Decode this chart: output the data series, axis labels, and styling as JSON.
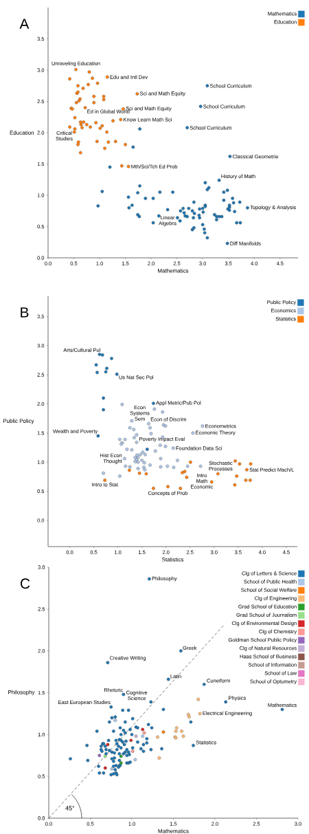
{
  "chart_data": [
    {
      "type": "scatter",
      "title": "A",
      "xlabel": "Mathematics",
      "ylabel": "Education",
      "legend": "top right",
      "marker": "circle",
      "xlim": [
        0,
        4.85
      ],
      "ylim": [
        0,
        4.0
      ],
      "xticks": [
        {
          "value": 0,
          "label": "0.0"
        },
        {
          "value": 0.5,
          "label": "0.5"
        },
        {
          "value": 1,
          "label": "1.0"
        },
        {
          "value": 1.5,
          "label": "1.5"
        },
        {
          "value": 2,
          "label": "2.0"
        },
        {
          "value": 2.5,
          "label": "2.5"
        },
        {
          "value": 3,
          "label": "3.0"
        },
        {
          "value": 3.5,
          "label": "3.5"
        },
        {
          "value": 4,
          "label": "4.0"
        },
        {
          "value": 4.5,
          "label": "4.5"
        }
      ],
      "yticks": [
        {
          "value": 0,
          "label": "0.0"
        },
        {
          "value": 0.5,
          "label": "0.5"
        },
        {
          "value": 1,
          "label": "1.0"
        },
        {
          "value": 1.5,
          "label": "1.5"
        },
        {
          "value": 2,
          "label": "2.0"
        },
        {
          "value": 2.5,
          "label": "2.5"
        },
        {
          "value": 3,
          "label": "3.0"
        },
        {
          "value": 3.5,
          "label": "3.5"
        }
      ],
      "series": [
        {
          "name": "Mathematics",
          "color": "#1f77b4",
          "x": [
            1.78,
            3.09,
            2.96,
            2.7,
            1.65,
            1.2,
            3.53,
            3.32,
            3.05,
            3.09,
            3.12,
            1.78,
            1.74,
            1.05,
            0.97,
            2.17,
            2.42,
            1.56,
            1.89,
            2.04,
            1.63,
            1.57,
            1.74,
            1.77,
            2.15,
            2.04,
            2.32,
            2.51,
            2.56,
            3.41,
            3.48,
            3.41,
            3.58,
            3.6,
            3.72,
            3.87,
            3.62,
            3.66,
            3.73,
            3.48,
            2.62,
            2.73,
            2.83,
            2.57,
            2.64,
            2.66,
            2.7,
            2.8,
            2.84,
            2.82,
            2.8,
            2.83,
            2.94,
            3.0,
            2.93,
            2.94,
            3.01,
            3.05,
            3.05,
            3.0,
            3.03,
            3.04,
            3.09,
            3.23,
            3.27,
            3.27,
            3.32,
            3.37,
            3.49,
            3.52,
            3.52,
            3.52
          ],
          "values": [
            2.06,
            2.75,
            2.42,
            2.08,
            1.77,
            1.45,
            1.62,
            1.24,
            1.2,
            1.09,
            1.12,
            1.15,
            1.04,
            1.06,
            0.83,
            1.05,
            1.05,
            0.97,
            0.95,
            0.95,
            0.84,
            0.8,
            0.69,
            0.66,
            0.67,
            0.56,
            0.77,
            0.64,
            0.59,
            1.05,
            1.08,
            0.92,
            0.95,
            0.88,
            0.89,
            0.8,
            0.74,
            0.56,
            0.56,
            0.23,
            0.79,
            0.79,
            0.89,
            0.75,
            0.72,
            0.67,
            0.66,
            0.75,
            0.71,
            0.64,
            0.45,
            0.48,
            0.78,
            0.79,
            0.68,
            0.64,
            0.73,
            0.84,
            0.82,
            0.53,
            0.46,
            0.4,
            0.32,
            0.69,
            0.66,
            0.61,
            0.66,
            0.66,
            0.78,
            0.81,
            0.76,
            0.84
          ]
        },
        {
          "name": "Education",
          "color": "#ff7f0e",
          "x": [
            0.54,
            0.42,
            0.8,
            0.86,
            0.96,
            0.78,
            0.68,
            0.58,
            1.15,
            0.56,
            0.58,
            0.62,
            0.6,
            0.55,
            0.89,
            0.89,
            1.08,
            1.08,
            0.45,
            0.47,
            0.72,
            0.52,
            1.73,
            1.46,
            1.41,
            1.26,
            0.63,
            0.69,
            0.64,
            0.75,
            0.82,
            0.93,
            1.05,
            1.01,
            0.66,
            0.42,
            0.52,
            0.51,
            1.14,
            0.59,
            0.58,
            0.63,
            0.95,
            1.17,
            1.31,
            1.1,
            1.5,
            1.43,
            1.56
          ],
          "values": [
            3.01,
            2.86,
            2.97,
            2.87,
            2.79,
            2.77,
            2.71,
            2.75,
            2.89,
            2.63,
            2.65,
            2.54,
            2.51,
            2.48,
            2.58,
            2.48,
            2.58,
            2.53,
            2.39,
            2.38,
            2.4,
            2.24,
            2.62,
            2.38,
            2.21,
            2.19,
            2.17,
            2.17,
            2.13,
            2.13,
            2.09,
            2.16,
            2.11,
            2.07,
            2.08,
            2.09,
            2.06,
            2.01,
            2.01,
            1.85,
            1.81,
            1.68,
            1.86,
            1.85,
            1.86,
            1.75,
            1.81,
            1.47,
            1.46
          ]
        }
      ],
      "annotations": [
        {
          "text": "Unraveling Education",
          "x": 0.54,
          "y": 3.01
        },
        {
          "text": "Edu and Intl Dev",
          "x": 1.15,
          "y": 2.89
        },
        {
          "text": "Sci and Math Equity",
          "x": 1.73,
          "y": 2.62
        },
        {
          "text": "Sci and Math Equity",
          "x": 1.46,
          "y": 2.38
        },
        {
          "text": "Ed in Global World",
          "x": 0.72,
          "y": 2.4
        },
        {
          "text": "Know Learn Math Sci",
          "x": 1.41,
          "y": 2.21
        },
        {
          "text": "Critical Studies",
          "x": 0.42,
          "y": 2.09
        },
        {
          "text": "Mth/Sci/Tch Ed Prob",
          "x": 1.56,
          "y": 1.46
        },
        {
          "text": "School Curriculum",
          "x": 3.09,
          "y": 2.75
        },
        {
          "text": "School Curriculum",
          "x": 2.96,
          "y": 2.42
        },
        {
          "text": "School Curriculum",
          "x": 2.7,
          "y": 2.08
        },
        {
          "text": "Classical Geometrie",
          "x": 3.53,
          "y": 1.62
        },
        {
          "text": "History of Math",
          "x": 3.32,
          "y": 1.24
        },
        {
          "text": "Topology & Analysis",
          "x": 3.87,
          "y": 0.8
        },
        {
          "text": "Linear Algebra",
          "x": 2.32,
          "y": 0.77
        },
        {
          "text": "Diff Manifolds",
          "x": 3.48,
          "y": 0.23
        }
      ]
    },
    {
      "type": "scatter",
      "title": "B",
      "xlabel": "Statistics",
      "ylabel": "Public Policy",
      "legend": "top right",
      "marker": "circle",
      "xlim": [
        -0.45,
        4.73
      ],
      "ylim": [
        -0.45,
        3.85
      ],
      "xticks": [
        {
          "value": 0,
          "label": "0.0"
        },
        {
          "value": 0.5,
          "label": "0.5"
        },
        {
          "value": 1,
          "label": "1.0"
        },
        {
          "value": 1.5,
          "label": "1.5"
        },
        {
          "value": 2,
          "label": "2.0"
        },
        {
          "value": 2.5,
          "label": "2.5"
        },
        {
          "value": 3,
          "label": "3.0"
        },
        {
          "value": 3.5,
          "label": "3.5"
        },
        {
          "value": 4,
          "label": "4.0"
        },
        {
          "value": 4.5,
          "label": "4.5"
        }
      ],
      "yticks": [
        {
          "value": 0,
          "label": "0.0"
        },
        {
          "value": 0.5,
          "label": "0.5"
        },
        {
          "value": 1,
          "label": "1.0"
        },
        {
          "value": 1.5,
          "label": "1.5"
        },
        {
          "value": 2,
          "label": "2.0"
        },
        {
          "value": 2.5,
          "label": "2.5"
        },
        {
          "value": 3,
          "label": "3.0"
        },
        {
          "value": 3.5,
          "label": "3.5"
        }
      ],
      "series": [
        {
          "name": "Public Policy",
          "color": "#1f77b4",
          "x": [
            0.62,
            0.68,
            0.87,
            0.55,
            0.77,
            0.57,
            0.75,
            0.98,
            0.7,
            1.74,
            0.7,
            0.59,
            1.61
          ],
          "values": [
            2.85,
            2.84,
            2.78,
            2.67,
            2.61,
            2.54,
            2.55,
            2.51,
            2.1,
            2.01,
            1.9,
            1.45,
            1.22
          ]
        },
        {
          "name": "Economics",
          "color": "#aec7e8",
          "x": [
            1.09,
            1.76,
            1.93,
            1.29,
            1.64,
            1.67,
            1.95,
            1.99,
            1.25,
            1.33,
            2.76,
            2.56,
            1.69,
            1.39,
            1.93,
            1.34,
            1.04,
            1.15,
            1.09,
            1.07,
            1.39,
            1.88,
            1.99,
            2.15,
            1.19,
            1.29,
            1.78,
            1.4,
            1.47,
            1.52,
            1.57,
            1.36,
            1.42,
            1.39,
            1.36,
            1.42,
            1.14,
            1.5,
            1.55,
            1.89,
            2.24,
            1.16,
            1.25,
            1.42,
            1.54,
            1.56,
            1.67,
            1.89,
            2.03,
            2.16,
            2.45,
            2.72,
            1.04,
            0.7
          ],
          "values": [
            1.99,
            1.91,
            1.86,
            1.71,
            1.66,
            1.59,
            1.64,
            1.62,
            1.59,
            1.56,
            1.62,
            1.5,
            1.49,
            1.47,
            1.43,
            1.42,
            1.39,
            1.39,
            1.33,
            1.31,
            1.34,
            1.29,
            1.27,
            1.24,
            1.22,
            1.21,
            1.19,
            1.12,
            1.13,
            1.17,
            1.13,
            1.08,
            1.08,
            1.04,
            1.01,
            1.0,
            1.06,
            1.03,
            0.99,
            1.06,
            1.03,
            0.93,
            0.92,
            0.89,
            0.91,
            0.87,
            0.95,
            0.92,
            0.93,
            0.91,
            0.93,
            0.93,
            0.76,
            0.81
          ]
        },
        {
          "name": "Statistics",
          "color": "#ff7f0e",
          "x": [
            0.73,
            1.24,
            1.45,
            1.59,
            1.74,
            2.04,
            2.3,
            2.34,
            2.39,
            2.43,
            2.51,
            2.95,
            3.08,
            3.44,
            3.53,
            3.76,
            3.47,
            3.43,
            3.68,
            3.66,
            3.75
          ],
          "values": [
            0.69,
            0.86,
            0.81,
            0.8,
            0.55,
            0.58,
            0.55,
            0.82,
            0.84,
            0.74,
            1.0,
            0.66,
            0.8,
            1.02,
            0.97,
            0.97,
            0.76,
            0.61,
            0.87,
            0.69,
            0.69
          ]
        }
      ],
      "annotations": [
        {
          "text": "Arts/Cultural Pol",
          "x": 0.62,
          "y": 2.85
        },
        {
          "text": "Us Nat Sec Pol",
          "x": 0.98,
          "y": 2.51
        },
        {
          "text": "Appl Metric/Pub Pol",
          "x": 1.74,
          "y": 2.01
        },
        {
          "text": "Econ Systems Sem",
          "x": 1.09,
          "y": 1.99
        },
        {
          "text": "Econ of Discrim",
          "x": 1.64,
          "y": 1.66
        },
        {
          "text": "Econometrics",
          "x": 2.76,
          "y": 1.62
        },
        {
          "text": "Wealth and Poverty",
          "x": 0.59,
          "y": 1.45
        },
        {
          "text": "Economic Theory",
          "x": 2.56,
          "y": 1.5
        },
        {
          "text": "Poverty Impact Eval",
          "x": 1.39,
          "y": 1.34
        },
        {
          "text": "Foundation Data Sci",
          "x": 2.15,
          "y": 1.24
        },
        {
          "text": "Hist Econ Thought",
          "x": 1.14,
          "y": 1.06
        },
        {
          "text": "Stochastic Processes",
          "x": 3.08,
          "y": 0.8
        },
        {
          "text": "Intro Math Economic",
          "x": 2.45,
          "y": 0.93
        },
        {
          "text": "Stat Predict Mach/L",
          "x": 3.68,
          "y": 0.87
        },
        {
          "text": "Intro to Stat",
          "x": 0.73,
          "y": 0.69
        },
        {
          "text": "Concepts of Prob",
          "x": 2.04,
          "y": 0.58
        }
      ]
    },
    {
      "type": "scatter",
      "title": "C",
      "xlabel": "Mathematics",
      "ylabel": "Philosophy",
      "legend": "top right",
      "marker": "circle",
      "xlim": [
        0,
        3.0
      ],
      "ylim": [
        0,
        3.0
      ],
      "xticks": [
        {
          "value": 0,
          "label": "0.0"
        },
        {
          "value": 0.5,
          "label": "0.5"
        },
        {
          "value": 1,
          "label": "1.0"
        },
        {
          "value": 1.5,
          "label": "1.5"
        },
        {
          "value": 2,
          "label": "2.0"
        },
        {
          "value": 2.5,
          "label": "2.5"
        },
        {
          "value": 3,
          "label": "3.0"
        }
      ],
      "yticks": [
        {
          "value": 0,
          "label": "0.0"
        },
        {
          "value": 0.5,
          "label": "0.5"
        },
        {
          "value": 1,
          "label": "1.0"
        },
        {
          "value": 1.5,
          "label": "1.5"
        },
        {
          "value": 2,
          "label": "2.0"
        },
        {
          "value": 2.5,
          "label": "2.5"
        },
        {
          "value": 3,
          "label": "3.0"
        }
      ],
      "series": [
        {
          "type": "line",
          "color": "#555555",
          "line_style": "dashed",
          "marker": "none",
          "x": [
            0.0,
            2.1
          ],
          "values": [
            0.0,
            2.3
          ]
        },
        {
          "name": "Clg of Letters & Science",
          "color": "#1f77b4",
          "x": [
            1.21,
            1.59,
            0.71,
            1.44,
            1.87,
            0.9,
            1.23,
            0.75,
            2.13,
            2.81,
            1.74,
            1.38,
            0.89,
            0.96,
            0.76,
            0.8,
            0.73,
            0.92,
            1.01,
            1.71,
            0.58,
            0.78,
            0.86,
            0.9,
            0.87,
            0.92,
            0.98,
            1.05,
            1.07,
            1.2,
            1.24,
            1.0,
            1.18,
            1.07,
            1.14,
            1.18,
            1.23,
            1.11,
            1.14,
            1.01,
            0.96,
            1.36,
            0.46,
            0.26,
            0.47,
            0.65,
            0.63,
            0.66,
            0.68,
            0.72,
            0.63,
            0.64,
            0.69,
            0.73,
            0.76,
            0.81,
            0.85,
            0.87,
            0.82,
            0.84,
            0.89,
            0.91,
            0.93,
            0.87,
            0.82,
            0.79,
            0.85,
            0.9,
            0.92,
            0.94,
            0.94,
            0.97,
            0.79,
            0.76,
            0.78,
            0.85,
            0.81,
            0.84,
            0.85,
            0.86,
            0.94,
            0.96,
            0.98,
            0.78,
            0.6,
            0.61,
            0.66,
            0.8,
            0.81,
            0.78,
            0.75,
            0.82,
            0.69
          ],
          "values": [
            2.86,
            2.0,
            1.86,
            1.66,
            1.6,
            1.48,
            1.39,
            1.33,
            1.39,
            1.3,
            0.87,
            1.3,
            1.29,
            1.29,
            1.2,
            1.21,
            1.15,
            1.15,
            1.19,
            1.15,
            1.04,
            1.04,
            1.08,
            1.05,
            1.0,
            1.02,
            1.06,
            1.09,
            1.08,
            1.12,
            1.08,
            1.0,
            0.95,
            0.91,
            0.88,
            0.9,
            0.82,
            0.83,
            0.8,
            0.84,
            0.79,
            0.83,
            0.87,
            0.71,
            0.69,
            0.89,
            0.86,
            0.89,
            0.86,
            0.93,
            0.82,
            0.8,
            0.82,
            0.81,
            0.79,
            0.93,
            0.94,
            0.93,
            0.89,
            0.86,
            0.91,
            0.88,
            0.92,
            0.84,
            0.82,
            0.78,
            0.77,
            0.77,
            0.79,
            0.82,
            0.75,
            0.76,
            0.72,
            0.71,
            0.68,
            0.69,
            0.63,
            0.61,
            0.63,
            0.63,
            0.66,
            0.66,
            0.67,
            0.62,
            0.62,
            0.54,
            0.54,
            0.58,
            0.54,
            0.53,
            0.52,
            0.52,
            0.77
          ]
        },
        {
          "name": "School of Public Health",
          "color": "#aec7e8",
          "x": [
            1.13,
            1.04,
            0.76,
            0.8
          ],
          "values": [
            0.98,
            0.7,
            0.59,
            1.17
          ]
        },
        {
          "name": "School of Social Welfare",
          "color": "#ff7f0e",
          "x": [
            1.38
          ],
          "values": [
            1.03
          ]
        },
        {
          "name": "Clg of Engineering",
          "color": "#ffbb78",
          "x": [
            1.8,
            1.82,
            1.68,
            1.69,
            1.33,
            1.31,
            1.52,
            1.53,
            1.54,
            1.53,
            1.6,
            1.62
          ],
          "values": [
            1.42,
            1.25,
            1.24,
            1.21,
            0.72,
            0.97,
            0.97,
            0.96,
            1.08,
            1.04,
            1.04,
            0.98
          ]
        },
        {
          "name": "Grad School of Education",
          "color": "#2ca02c",
          "x": [
            0.87,
            0.87
          ],
          "values": [
            0.74,
            0.66
          ]
        },
        {
          "name": "Grad School of Journalism",
          "color": "#98df8a",
          "x": [
            0.68
          ],
          "values": [
            0.74
          ]
        },
        {
          "name": "Clg of Environmental Design",
          "color": "#d62728",
          "x": [
            1.13,
            0.99,
            0.68,
            0.71
          ],
          "values": [
            1.06,
            0.93,
            0.6,
            0.88
          ]
        },
        {
          "name": "Clg of Chemistry",
          "color": "#ff9896",
          "x": [
            1.15,
            1.01
          ],
          "values": [
            1.02,
            0.8
          ]
        },
        {
          "name": "Goldman School Public Policy",
          "color": "#9467bd",
          "x": [
            0.61
          ],
          "values": [
            0.75
          ]
        },
        {
          "name": "Clg of Natural Resources",
          "color": "#c5b0d5",
          "x": [
            1.05
          ],
          "values": [
            0.98
          ]
        },
        {
          "name": "Haas School of Business",
          "color": "#8c564b"
        },
        {
          "name": "School of Information",
          "color": "#c49c94"
        },
        {
          "name": "School of Law",
          "color": "#e377c2"
        },
        {
          "name": "School of Optometry",
          "color": "#f7b6d2"
        }
      ],
      "annotations": [
        {
          "text": "Philosophy",
          "x": 1.21,
          "y": 2.86
        },
        {
          "text": "Greek",
          "x": 1.59,
          "y": 2.0
        },
        {
          "text": "Creative Writing",
          "x": 0.71,
          "y": 1.86
        },
        {
          "text": "Latin",
          "x": 1.44,
          "y": 1.66
        },
        {
          "text": "Cuneiform",
          "x": 1.87,
          "y": 1.6
        },
        {
          "text": "Rhetoric",
          "x": 0.9,
          "y": 1.48
        },
        {
          "text": "Cognitive Science",
          "x": 1.23,
          "y": 1.39
        },
        {
          "text": "East European Studies",
          "x": 0.75,
          "y": 1.33
        },
        {
          "text": "Physics",
          "x": 2.13,
          "y": 1.39
        },
        {
          "text": "Mathematics",
          "x": 2.81,
          "y": 1.3
        },
        {
          "text": "Electrical Engineering",
          "x": 1.82,
          "y": 1.25
        },
        {
          "text": "Statistics",
          "x": 1.74,
          "y": 0.87
        },
        "45°"
      ]
    }
  ]
}
